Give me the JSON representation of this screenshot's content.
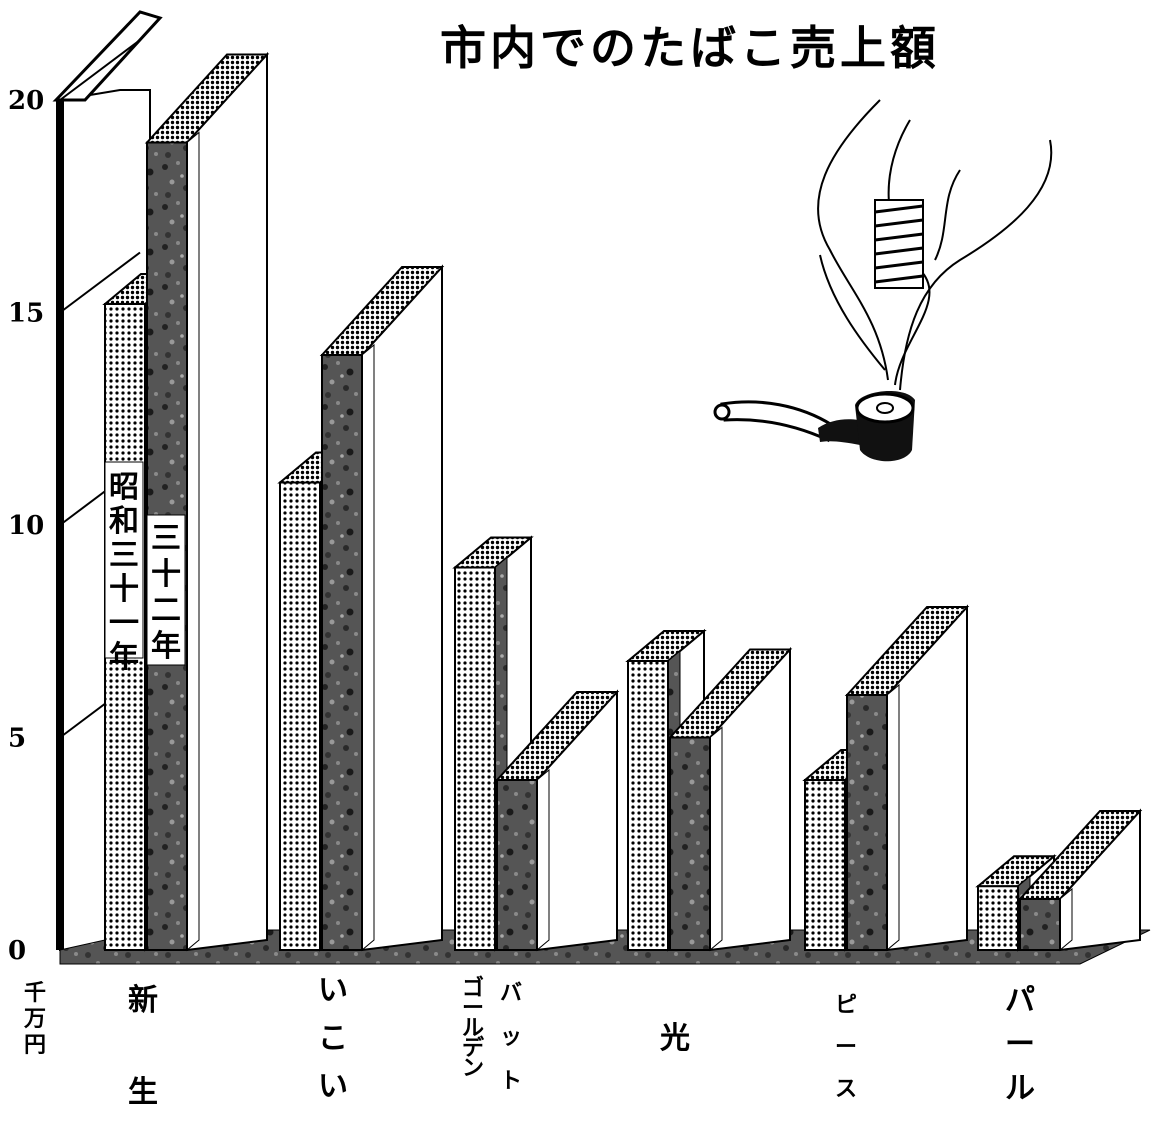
{
  "chart_data": {
    "type": "bar",
    "title": "市内でのたばこ売上額",
    "ylabel": "千万円",
    "ylim": [
      0,
      20
    ],
    "yticks": [
      "0",
      "5",
      "10",
      "15",
      "20"
    ],
    "grid": false,
    "legend_position": "inside-top-left",
    "categories": [
      {
        "id": "shinsei",
        "label": "新生"
      },
      {
        "id": "ikoi",
        "label": "いこい"
      },
      {
        "id": "golden-bat",
        "label": "ゴールデンバット",
        "parts": [
          "バット",
          "ゴールデン"
        ]
      },
      {
        "id": "hikari",
        "label": "光"
      },
      {
        "id": "peace",
        "label": "ピース"
      },
      {
        "id": "pearl",
        "label": "パール"
      }
    ],
    "series": [
      {
        "name": "昭和三十一年",
        "values": [
          15.2,
          11.0,
          9.0,
          6.8,
          4.0,
          1.5
        ]
      },
      {
        "name": "三十二年",
        "values": [
          19.0,
          14.0,
          4.0,
          5.0,
          6.0,
          1.2
        ]
      }
    ],
    "illustration": "smoking-pipe-icon"
  }
}
